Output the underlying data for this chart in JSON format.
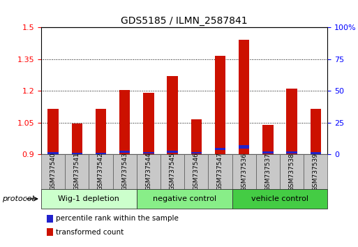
{
  "title": "GDS5185 / ILMN_2587841",
  "samples": [
    "GSM737540",
    "GSM737541",
    "GSM737542",
    "GSM737543",
    "GSM737544",
    "GSM737545",
    "GSM737546",
    "GSM737547",
    "GSM737536",
    "GSM737537",
    "GSM737538",
    "GSM737539"
  ],
  "red_values": [
    1.115,
    1.045,
    1.115,
    1.205,
    1.19,
    1.27,
    1.065,
    1.365,
    1.44,
    1.04,
    1.21,
    1.115
  ],
  "blue_positions": [
    0.902,
    0.899,
    0.901,
    0.908,
    0.903,
    0.908,
    0.903,
    0.92,
    0.928,
    0.905,
    0.905,
    0.902
  ],
  "blue_heights": [
    0.008,
    0.007,
    0.007,
    0.009,
    0.008,
    0.009,
    0.007,
    0.012,
    0.015,
    0.008,
    0.008,
    0.008
  ],
  "ylim": [
    0.9,
    1.5
  ],
  "yticks_left": [
    0.9,
    1.05,
    1.2,
    1.35,
    1.5
  ],
  "ytick_labels_left": [
    "0.9",
    "1.05",
    "1.2",
    "1.35",
    "1.5"
  ],
  "y2lim": [
    0,
    100
  ],
  "y2ticks": [
    0,
    25,
    50,
    75,
    100
  ],
  "y2ticklabels": [
    "0",
    "25",
    "50",
    "75",
    "100%"
  ],
  "bar_color": "#cc1100",
  "blue_color": "#2222cc",
  "bar_bottom": 0.9,
  "bar_width": 0.45,
  "groups": [
    {
      "label": "Wig-1 depletion",
      "start": 0,
      "end": 4,
      "color": "#ccffcc"
    },
    {
      "label": "negative control",
      "start": 4,
      "end": 8,
      "color": "#88ee88"
    },
    {
      "label": "vehicle control",
      "start": 8,
      "end": 12,
      "color": "#44cc44"
    }
  ],
  "protocol_label": "protocol",
  "legend_items": [
    {
      "color": "#cc1100",
      "label": "transformed count"
    },
    {
      "color": "#2222cc",
      "label": "percentile rank within the sample"
    }
  ],
  "grid_linestyle": "dotted",
  "label_fontsize": 6.5,
  "group_fontsize": 8.0,
  "title_fontsize": 10
}
